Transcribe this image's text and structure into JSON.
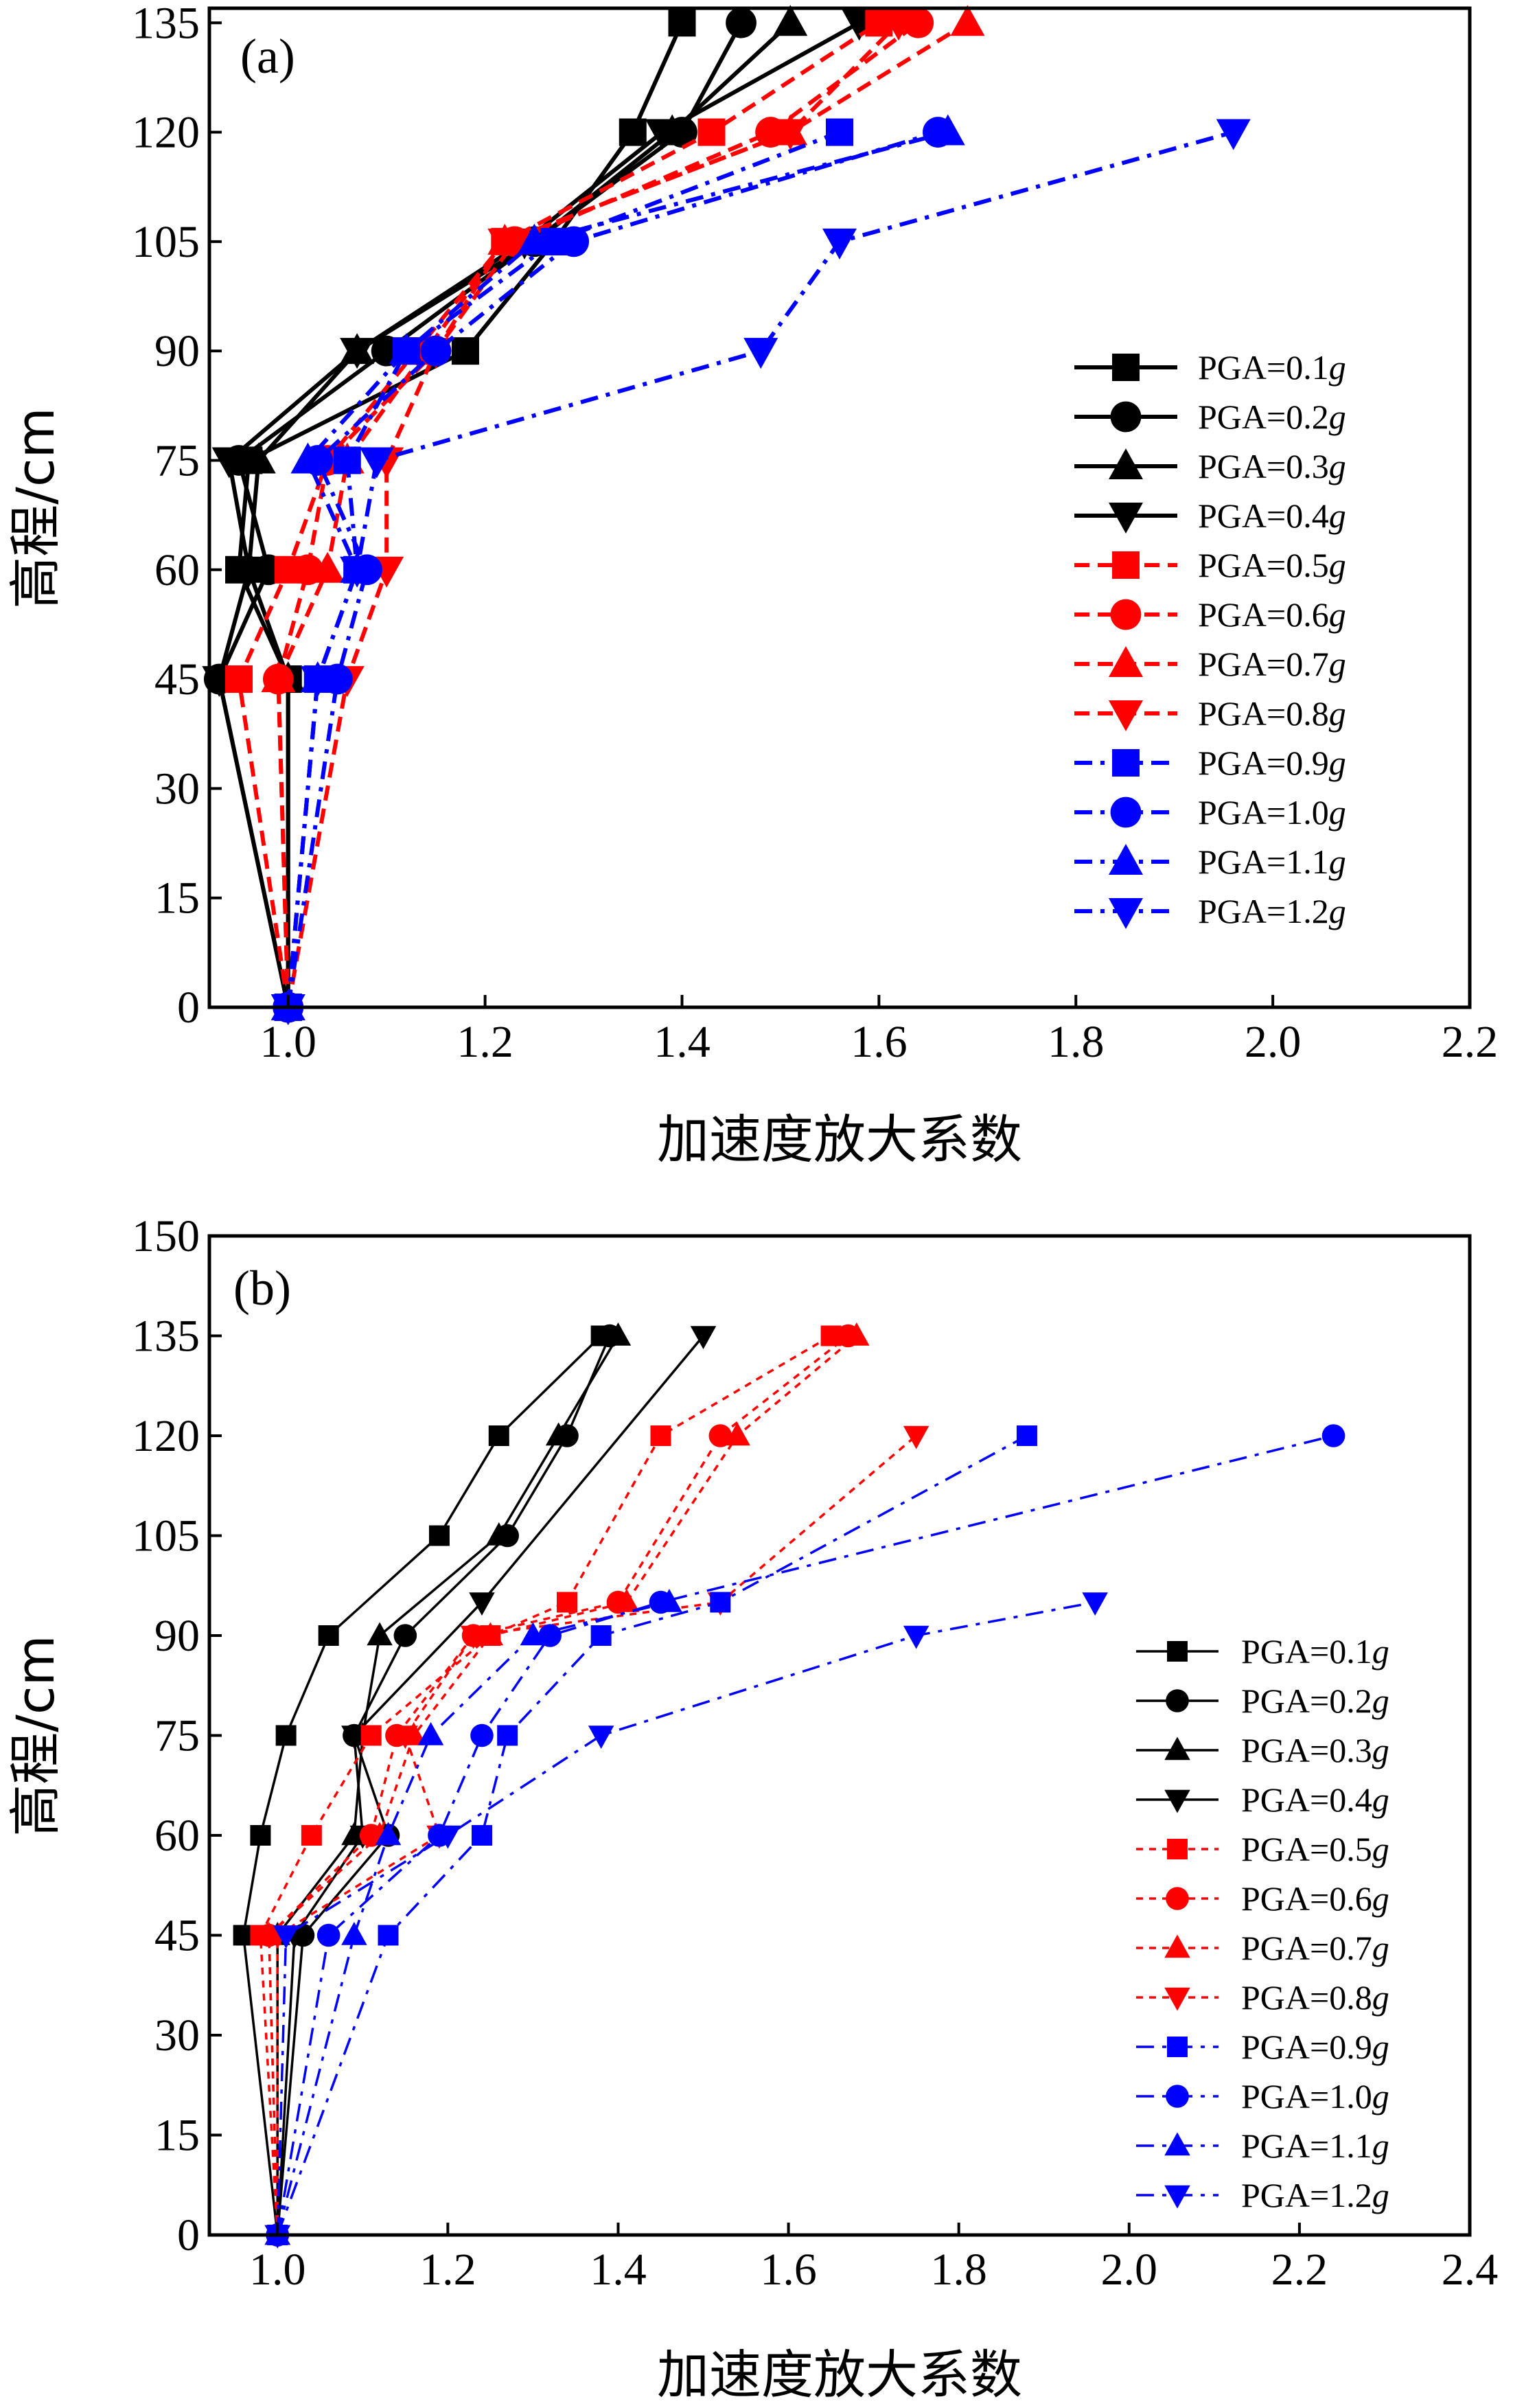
{
  "figure": {
    "panels": [
      {
        "tag": "(a)",
        "xlabel": "加速度放大系数",
        "ylabel": "高程/cm",
        "legend_suffix": "g",
        "series_names": [
          "PGA=0.1",
          "PGA=0.2",
          "PGA=0.3",
          "PGA=0.4",
          "PGA=0.5",
          "PGA=0.6",
          "PGA=0.7",
          "PGA=0.8",
          "PGA=0.9",
          "PGA=1.0",
          "PGA=1.1",
          "PGA=1.2"
        ],
        "xticks": [
          "1.0",
          "1.2",
          "1.4",
          "1.6",
          "1.8",
          "2.0",
          "2.2"
        ],
        "yticks": [
          "0",
          "15",
          "30",
          "45",
          "60",
          "75",
          "90",
          "105",
          "120",
          "135"
        ]
      },
      {
        "tag": "(b)",
        "xlabel": "加速度放大系数",
        "ylabel": "高程/cm",
        "legend_suffix": "g",
        "series_names": [
          "PGA=0.1",
          "PGA=0.2",
          "PGA=0.3",
          "PGA=0.4",
          "PGA=0.5",
          "PGA=0.6",
          "PGA=0.7",
          "PGA=0.8",
          "PGA=0.9",
          "PGA=1.0",
          "PGA=1.1",
          "PGA=1.2"
        ],
        "xticks": [
          "1.0",
          "1.2",
          "1.4",
          "1.6",
          "1.8",
          "2.0",
          "2.2",
          "2.4"
        ],
        "yticks": [
          "0",
          "15",
          "30",
          "45",
          "60",
          "75",
          "90",
          "105",
          "120",
          "135",
          "150"
        ]
      }
    ]
  },
  "chart_data": [
    {
      "type": "line",
      "panel": "(a)",
      "xlabel": "加速度放大系数",
      "ylabel": "高程/cm",
      "xlim": [
        0.92,
        2.2
      ],
      "ylim": [
        0,
        137
      ],
      "xticks": [
        1.0,
        1.2,
        1.4,
        1.6,
        1.8,
        2.0,
        2.2
      ],
      "yticks": [
        0,
        15,
        30,
        45,
        60,
        75,
        90,
        105,
        120,
        135
      ],
      "grid": false,
      "legend_position": "right",
      "colors": {
        "black": "#000000",
        "red": "#ff0000",
        "blue": "#0000ff"
      },
      "series": [
        {
          "name": "PGA=0.1g",
          "color": "#000000",
          "dash": "solid",
          "marker": "square",
          "points": [
            [
              1.0,
              0
            ],
            [
              1.0,
              45
            ],
            [
              0.95,
              60
            ],
            [
              0.96,
              75
            ],
            [
              1.18,
              90
            ],
            [
              1.27,
              105
            ],
            [
              1.35,
              120
            ],
            [
              1.4,
              135
            ]
          ]
        },
        {
          "name": "PGA=0.2g",
          "color": "#000000",
          "dash": "solid",
          "marker": "circle",
          "points": [
            [
              1.0,
              0
            ],
            [
              0.93,
              45
            ],
            [
              0.98,
              60
            ],
            [
              0.95,
              75
            ],
            [
              1.1,
              90
            ],
            [
              1.25,
              105
            ],
            [
              1.4,
              120
            ],
            [
              1.46,
              135
            ]
          ]
        },
        {
          "name": "PGA=0.3g",
          "color": "#000000",
          "dash": "solid",
          "marker": "triangle-up",
          "points": [
            [
              1.0,
              0
            ],
            [
              1.0,
              45
            ],
            [
              0.96,
              60
            ],
            [
              0.97,
              75
            ],
            [
              1.07,
              90
            ],
            [
              1.25,
              105
            ],
            [
              1.39,
              120
            ],
            [
              1.51,
              135
            ]
          ]
        },
        {
          "name": "PGA=0.4g",
          "color": "#000000",
          "dash": "solid",
          "marker": "triangle-down",
          "points": [
            [
              1.0,
              0
            ],
            [
              0.93,
              45
            ],
            [
              0.96,
              60
            ],
            [
              0.94,
              75
            ],
            [
              1.07,
              90
            ],
            [
              1.24,
              105
            ],
            [
              1.38,
              120
            ],
            [
              1.58,
              135
            ]
          ]
        },
        {
          "name": "PGA=0.5g",
          "color": "#ff0000",
          "dash": "dash",
          "marker": "square",
          "points": [
            [
              1.0,
              0
            ],
            [
              0.95,
              45
            ],
            [
              1.0,
              60
            ],
            [
              1.04,
              75
            ],
            [
              1.13,
              90
            ],
            [
              1.22,
              105
            ],
            [
              1.43,
              120
            ],
            [
              1.6,
              135
            ]
          ]
        },
        {
          "name": "PGA=0.6g",
          "color": "#ff0000",
          "dash": "dash",
          "marker": "circle",
          "points": [
            [
              1.0,
              0
            ],
            [
              0.99,
              45
            ],
            [
              1.02,
              60
            ],
            [
              1.04,
              75
            ],
            [
              1.15,
              90
            ],
            [
              1.23,
              105
            ],
            [
              1.49,
              120
            ],
            [
              1.64,
              135
            ]
          ]
        },
        {
          "name": "PGA=0.7g",
          "color": "#ff0000",
          "dash": "dash",
          "marker": "triangle-up",
          "points": [
            [
              1.0,
              0
            ],
            [
              0.99,
              45
            ],
            [
              1.04,
              60
            ],
            [
              1.06,
              75
            ],
            [
              1.14,
              90
            ],
            [
              1.22,
              105
            ],
            [
              1.51,
              120
            ],
            [
              1.69,
              135
            ]
          ]
        },
        {
          "name": "PGA=0.8g",
          "color": "#ff0000",
          "dash": "dash",
          "marker": "triangle-down",
          "points": [
            [
              1.0,
              0
            ],
            [
              1.06,
              45
            ],
            [
              1.1,
              60
            ],
            [
              1.1,
              75
            ],
            [
              1.15,
              90
            ],
            [
              1.22,
              105
            ],
            [
              1.51,
              120
            ],
            [
              1.62,
              135
            ]
          ]
        },
        {
          "name": "PGA=0.9g",
          "color": "#0000ff",
          "dash": "dashdot",
          "marker": "square",
          "points": [
            [
              1.0,
              0
            ],
            [
              1.03,
              45
            ],
            [
              1.07,
              60
            ],
            [
              1.06,
              75
            ],
            [
              1.12,
              90
            ],
            [
              1.27,
              105
            ],
            [
              1.56,
              120
            ]
          ]
        },
        {
          "name": "PGA=1.0g",
          "color": "#0000ff",
          "dash": "dashdot",
          "marker": "circle",
          "points": [
            [
              1.0,
              0
            ],
            [
              1.05,
              45
            ],
            [
              1.08,
              60
            ],
            [
              1.03,
              75
            ],
            [
              1.15,
              90
            ],
            [
              1.29,
              105
            ],
            [
              1.66,
              120
            ]
          ]
        },
        {
          "name": "PGA=1.1g",
          "color": "#0000ff",
          "dash": "dashdot",
          "marker": "triangle-up",
          "points": [
            [
              1.0,
              0
            ],
            [
              1.03,
              45
            ],
            [
              1.07,
              60
            ],
            [
              1.02,
              75
            ],
            [
              1.12,
              90
            ],
            [
              1.25,
              105
            ],
            [
              1.67,
              120
            ]
          ]
        },
        {
          "name": "PGA=1.2g",
          "color": "#0000ff",
          "dash": "dashdot",
          "marker": "triangle-down",
          "points": [
            [
              1.0,
              0
            ],
            [
              1.03,
              45
            ],
            [
              1.07,
              60
            ],
            [
              1.09,
              75
            ],
            [
              1.48,
              90
            ],
            [
              1.56,
              105
            ],
            [
              1.96,
              120
            ]
          ]
        }
      ]
    },
    {
      "type": "line",
      "panel": "(b)",
      "xlabel": "加速度放大系数",
      "ylabel": "高程/cm",
      "xlim": [
        0.92,
        2.4
      ],
      "ylim": [
        0,
        150
      ],
      "xticks": [
        1.0,
        1.2,
        1.4,
        1.6,
        1.8,
        2.0,
        2.2,
        2.4
      ],
      "yticks": [
        0,
        15,
        30,
        45,
        60,
        75,
        90,
        105,
        120,
        135,
        150
      ],
      "grid": false,
      "legend_position": "right",
      "colors": {
        "black": "#000000",
        "red": "#ff0000",
        "blue": "#0000ff"
      },
      "series": [
        {
          "name": "PGA=0.1g",
          "color": "#000000",
          "dash": "solid",
          "marker": "square",
          "points": [
            [
              1.0,
              0
            ],
            [
              0.96,
              45
            ],
            [
              0.98,
              60
            ],
            [
              1.01,
              75
            ],
            [
              1.06,
              90
            ],
            [
              1.19,
              105
            ],
            [
              1.26,
              120
            ],
            [
              1.38,
              135
            ]
          ]
        },
        {
          "name": "PGA=0.2g",
          "color": "#000000",
          "dash": "solid",
          "marker": "circle",
          "points": [
            [
              1.0,
              0
            ],
            [
              1.03,
              45
            ],
            [
              1.13,
              60
            ],
            [
              1.09,
              75
            ],
            [
              1.15,
              90
            ],
            [
              1.27,
              105
            ],
            [
              1.34,
              120
            ],
            [
              1.39,
              135
            ]
          ]
        },
        {
          "name": "PGA=0.3g",
          "color": "#000000",
          "dash": "solid",
          "marker": "triangle-up",
          "points": [
            [
              1.0,
              0
            ],
            [
              1.0,
              45
            ],
            [
              1.09,
              60
            ],
            [
              1.1,
              75
            ],
            [
              1.12,
              90
            ],
            [
              1.26,
              105
            ],
            [
              1.33,
              120
            ],
            [
              1.4,
              135
            ]
          ]
        },
        {
          "name": "PGA=0.4g",
          "color": "#000000",
          "dash": "solid",
          "marker": "triangle-down",
          "points": [
            [
              1.0,
              0
            ],
            [
              1.02,
              45
            ],
            [
              1.1,
              60
            ],
            [
              1.09,
              75
            ],
            [
              1.24,
              95
            ],
            [
              1.5,
              135
            ]
          ]
        },
        {
          "name": "PGA=0.5g",
          "color": "#ff0000",
          "dash": "dot",
          "marker": "square",
          "points": [
            [
              1.0,
              0
            ],
            [
              0.98,
              45
            ],
            [
              1.04,
              60
            ],
            [
              1.11,
              75
            ],
            [
              1.25,
              90
            ],
            [
              1.34,
              95
            ],
            [
              1.45,
              120
            ],
            [
              1.65,
              135
            ]
          ]
        },
        {
          "name": "PGA=0.6g",
          "color": "#ff0000",
          "dash": "dot",
          "marker": "circle",
          "points": [
            [
              1.0,
              0
            ],
            [
              0.99,
              45
            ],
            [
              1.11,
              60
            ],
            [
              1.14,
              75
            ],
            [
              1.23,
              90
            ],
            [
              1.4,
              95
            ],
            [
              1.52,
              120
            ],
            [
              1.67,
              135
            ]
          ]
        },
        {
          "name": "PGA=0.7g",
          "color": "#ff0000",
          "dash": "dot",
          "marker": "triangle-up",
          "points": [
            [
              1.0,
              0
            ],
            [
              0.99,
              45
            ],
            [
              1.12,
              60
            ],
            [
              1.16,
              75
            ],
            [
              1.25,
              90
            ],
            [
              1.41,
              95
            ],
            [
              1.54,
              120
            ],
            [
              1.68,
              135
            ]
          ]
        },
        {
          "name": "PGA=0.8g",
          "color": "#ff0000",
          "dash": "dot",
          "marker": "triangle-down",
          "points": [
            [
              1.0,
              0
            ],
            [
              1.0,
              45
            ],
            [
              1.19,
              60
            ],
            [
              1.15,
              75
            ],
            [
              1.23,
              90
            ],
            [
              1.52,
              95
            ],
            [
              1.75,
              120
            ]
          ]
        },
        {
          "name": "PGA=0.9g",
          "color": "#0000ff",
          "dash": "dashdot",
          "marker": "square",
          "points": [
            [
              1.0,
              0
            ],
            [
              1.13,
              45
            ],
            [
              1.24,
              60
            ],
            [
              1.27,
              75
            ],
            [
              1.38,
              90
            ],
            [
              1.52,
              95
            ],
            [
              1.88,
              120
            ]
          ]
        },
        {
          "name": "PGA=1.0g",
          "color": "#0000ff",
          "dash": "dashdot",
          "marker": "circle",
          "points": [
            [
              1.0,
              0
            ],
            [
              1.06,
              45
            ],
            [
              1.19,
              60
            ],
            [
              1.24,
              75
            ],
            [
              1.32,
              90
            ],
            [
              1.45,
              95
            ],
            [
              2.24,
              120
            ]
          ]
        },
        {
          "name": "PGA=1.1g",
          "color": "#0000ff",
          "dash": "dashdot",
          "marker": "triangle-up",
          "points": [
            [
              1.0,
              0
            ],
            [
              1.09,
              45
            ],
            [
              1.13,
              60
            ],
            [
              1.18,
              75
            ],
            [
              1.3,
              90
            ],
            [
              1.46,
              95
            ]
          ]
        },
        {
          "name": "PGA=1.2g",
          "color": "#0000ff",
          "dash": "dashdot",
          "marker": "triangle-down",
          "points": [
            [
              1.0,
              0
            ],
            [
              1.01,
              45
            ],
            [
              1.2,
              60
            ],
            [
              1.38,
              75
            ],
            [
              1.75,
              90
            ],
            [
              1.96,
              95
            ]
          ]
        }
      ]
    }
  ]
}
